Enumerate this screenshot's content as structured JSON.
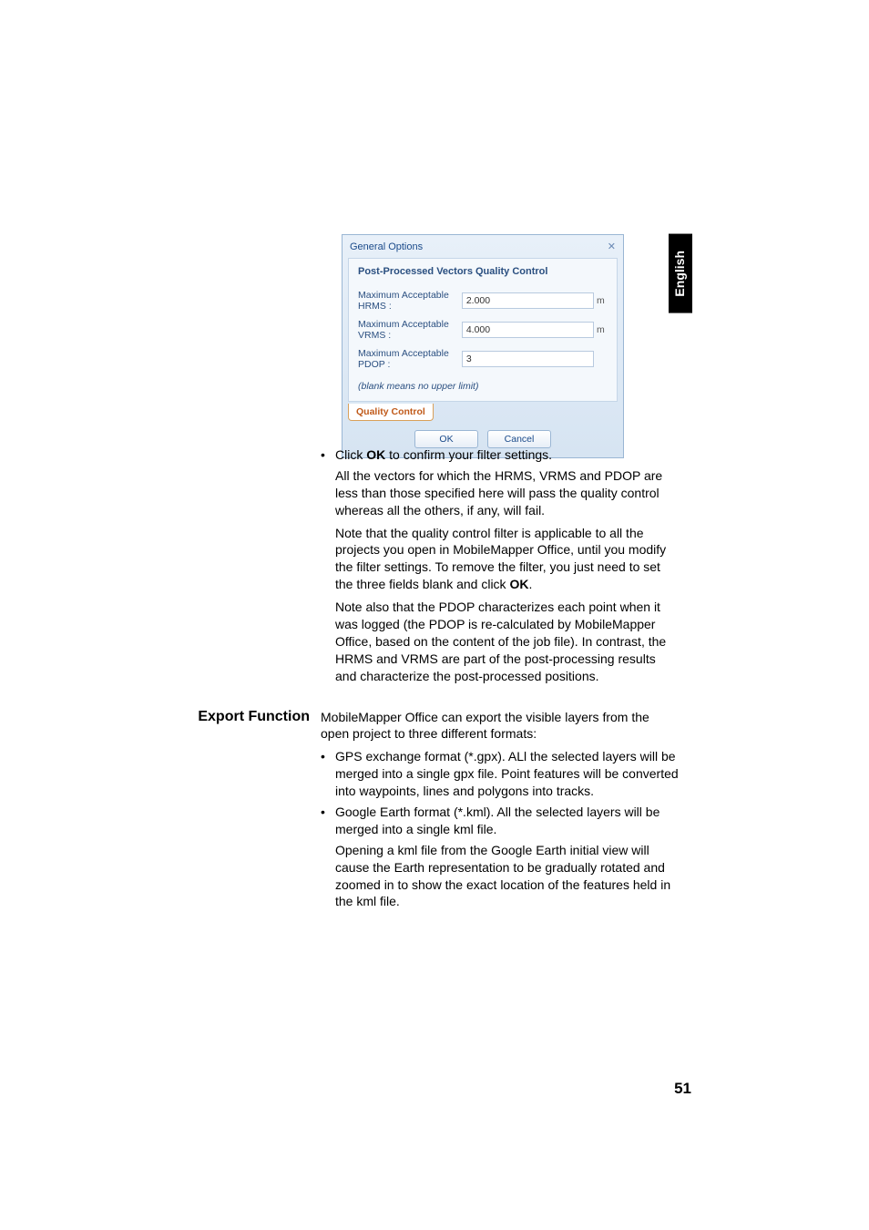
{
  "languageTab": "English",
  "dialog": {
    "title": "General Options",
    "sectionHeader": "Post-Processed Vectors Quality Control",
    "fields": [
      {
        "label": "Maximum Acceptable HRMS :",
        "value": "2.000",
        "unit": "m"
      },
      {
        "label": "Maximum Acceptable VRMS :",
        "value": "4.000",
        "unit": "m"
      },
      {
        "label": "Maximum Acceptable PDOP :",
        "value": "3",
        "unit": ""
      }
    ],
    "note": "(blank means no upper limit)",
    "tabLabel": "Quality Control",
    "okLabel": "OK",
    "cancelLabel": "Cancel"
  },
  "bullets1": [
    {
      "paras": [
        "Click <b>OK</b> to confirm your filter settings.",
        "All the vectors for which the HRMS, VRMS and PDOP are less than those specified here will pass the quality control whereas all the others, if any, will fail.",
        "Note that the quality control filter is applicable to all the projects you open in MobileMapper Office, until you modify the filter settings. To remove the filter, you just need to set the three fields blank and click <b>OK</b>.",
        "Note also that the PDOP characterizes each point when it was logged (the PDOP is re-calculated by MobileMapper Office, based on the content of the job file). In contrast, the HRMS and VRMS are part of the post-processing results and characterize the post-processed positions."
      ]
    }
  ],
  "exportHeading": "Export Function",
  "exportIntro": "MobileMapper Office can export the visible layers from the open project to three different formats:",
  "bullets2": [
    {
      "paras": [
        "GPS exchange format (*.gpx). ALl the selected layers will be merged into a single gpx file. Point features will be converted into waypoints, lines and polygons into tracks."
      ]
    },
    {
      "paras": [
        "Google Earth format (*.kml). All the selected layers will be merged into a single kml file.",
        "Opening a kml file from the Google Earth initial view will cause the Earth representation to be gradually rotated and zoomed in to show the exact location of the features held in the kml file."
      ]
    }
  ],
  "pageNumber": "51"
}
